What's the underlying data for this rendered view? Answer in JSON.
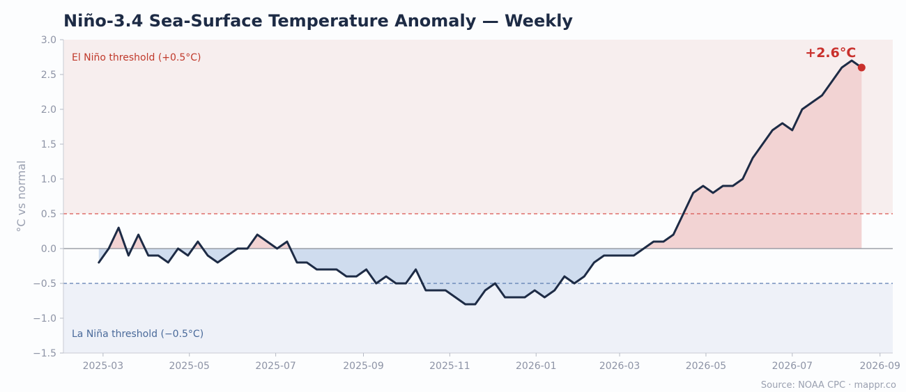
{
  "chart_data": {
    "type": "line",
    "title": "Niño-3.4 Sea-Surface Temperature Anomaly — Weekly",
    "ylabel": "°C vs normal",
    "xlabel": "",
    "ylim": [
      -1.5,
      3.0
    ],
    "yticks": [
      "−1.5",
      "−1.0",
      "−0.5",
      "0.0",
      "0.5",
      "1.0",
      "1.5",
      "2.0",
      "2.5",
      "3.0"
    ],
    "xlim": [
      "2025-02-01",
      "2026-09-10"
    ],
    "xticks": [
      "2025-03",
      "2025-05",
      "2025-07",
      "2025-09",
      "2025-11",
      "2026-01",
      "2026-03",
      "2026-05",
      "2026-07",
      "2026-09"
    ],
    "thresholds": [
      {
        "label": "El Niño threshold (+0.5°C)",
        "value": 0.5,
        "color": "#d9534f"
      },
      {
        "label": "La Niña threshold (−0.5°C)",
        "value": -0.5,
        "color": "#5b7bb0"
      }
    ],
    "x_start": "2025-02-26",
    "x_step_days": 7,
    "series": [
      {
        "values": [
          -0.2,
          0.0,
          0.3,
          -0.1,
          0.2,
          -0.1,
          -0.1,
          -0.2,
          0.0,
          -0.1,
          0.1,
          -0.1,
          -0.2,
          -0.1,
          0.0,
          0.0,
          0.2,
          0.1,
          0.0,
          0.1,
          -0.2,
          -0.2,
          -0.3,
          -0.3,
          -0.3,
          -0.4,
          -0.4,
          -0.3,
          -0.5,
          -0.4,
          -0.5,
          -0.5,
          -0.3,
          -0.6,
          -0.6,
          -0.6,
          -0.7,
          -0.8,
          -0.8,
          -0.6,
          -0.5,
          -0.7,
          -0.7,
          -0.7,
          -0.6,
          -0.7,
          -0.6,
          -0.4,
          -0.5,
          -0.4,
          -0.2,
          -0.1,
          -0.1,
          -0.1,
          -0.1,
          0.0,
          0.1,
          0.1,
          0.2,
          0.5,
          0.8,
          0.9,
          0.8,
          0.9,
          0.9,
          1.0,
          1.3,
          1.5,
          1.7,
          1.8,
          1.7,
          2.0,
          2.1,
          2.2,
          2.4,
          2.6,
          2.7,
          2.6
        ]
      }
    ],
    "annotation": {
      "text": "+2.6°C",
      "value": 2.6
    },
    "colors": {
      "line": "#1d2b45",
      "warm_fill": "#f2d3d3",
      "cool_fill": "#cfdcee",
      "warm_band": "#f7eeee",
      "cool_band": "#eef1f8",
      "marker": "#c9302c"
    },
    "source": "Source: NOAA CPC  ·  mappr.co"
  }
}
